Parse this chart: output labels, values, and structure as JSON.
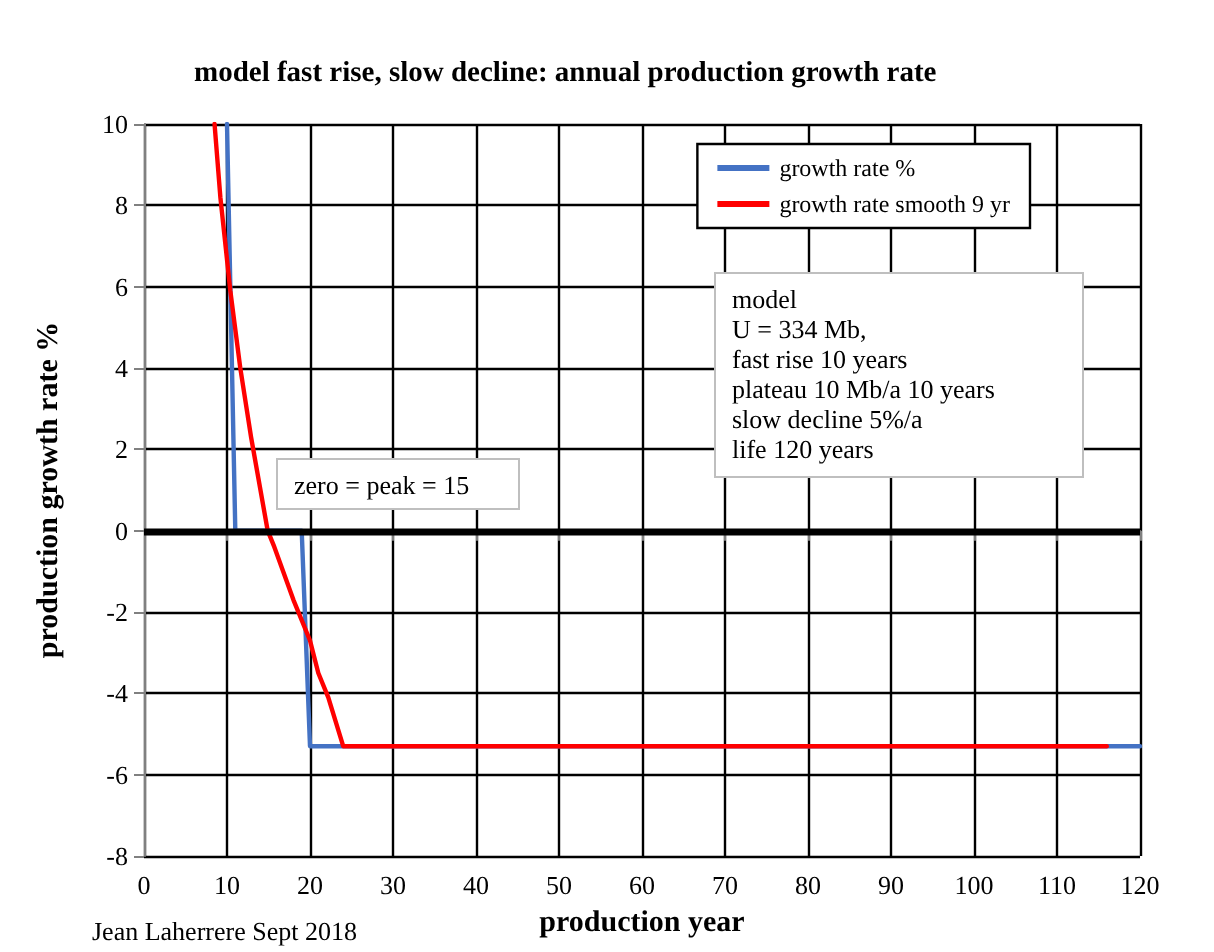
{
  "chart_data": {
    "type": "line",
    "title": "model fast rise, slow decline: annual production growth rate",
    "xlabel": "production year",
    "ylabel": "production growth rate %",
    "series": [
      {
        "name": "growth rate %",
        "color": "#4472c4",
        "x": [
          10,
          11,
          19,
          20,
          120
        ],
        "values": [
          10,
          0,
          0,
          -5.3,
          -5.3
        ]
      },
      {
        "name": "growth rate smooth 9 yr",
        "color": "#ff0000",
        "x": [
          8.5,
          9.2,
          10.4,
          11.6,
          12.9,
          14.9,
          15.7,
          18,
          20,
          21,
          22.2,
          24,
          116
        ],
        "values": [
          10,
          8.2,
          5.9,
          4,
          2.3,
          0,
          -0.4,
          -1.7,
          -2.7,
          -3.5,
          -4.1,
          -5.3,
          -5.3
        ]
      }
    ],
    "xlim": [
      0,
      120
    ],
    "xticks": [
      0,
      10,
      20,
      30,
      40,
      50,
      60,
      70,
      80,
      90,
      100,
      110,
      120
    ],
    "ylim": [
      -8,
      10
    ],
    "yticks": [
      -8,
      -6,
      -4,
      -2,
      0,
      2,
      4,
      6,
      8,
      10
    ],
    "grid": true,
    "legend": "top right",
    "marker": "none",
    "line_style": "solid",
    "ref_lines": [
      {
        "axis": "y",
        "value": 0,
        "color": "#000000"
      }
    ],
    "annotations": [
      "zero = peak = 15",
      "model\nU = 334 Mb,\nfast rise 10 years\nplateau 10 Mb/a 10 years\nslow decline 5%/a\nlife 120 years",
      "Jean Laherrere Sept 2018"
    ]
  }
}
